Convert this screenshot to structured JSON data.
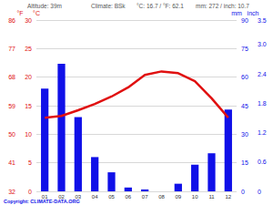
{
  "chart_data": {
    "type": "bar",
    "annotations": [
      "Altitude: 39m",
      "Climate: BSk",
      "°C: 16.7 / °F: 62.1",
      "mm: 272 / inch: 10.7",
      "Copyright: CLIMATE-DATA.ORG"
    ],
    "categories": [
      "01",
      "02",
      "03",
      "04",
      "05",
      "06",
      "07",
      "08",
      "09",
      "10",
      "11",
      "12"
    ],
    "ylabel": "°C",
    "ylim": [
      0,
      30
    ],
    "yticks": [
      0,
      5,
      10,
      15,
      20,
      25,
      30
    ],
    "y2label": "mm",
    "y2lim": [
      0,
      90
    ],
    "y2ticks": [
      0,
      15,
      30,
      45,
      60,
      75,
      90
    ],
    "y3label": "°F",
    "y3lim": [
      32,
      86
    ],
    "y3ticks": [
      32,
      41,
      50,
      59,
      68,
      77,
      86
    ],
    "y4label": "inch",
    "y4lim": [
      0,
      3.5
    ],
    "y4ticks": [
      0,
      0.6,
      1.2,
      1.8,
      2.4,
      {
        "value": 3,
        "label": "3.0"
      },
      3.5
    ],
    "grid": true,
    "series": [
      {
        "type": "bar",
        "color": "#1010e8",
        "axis": "y2",
        "values": [
          54,
          67,
          39,
          18,
          10,
          2,
          1,
          0,
          4,
          14,
          20,
          43
        ]
      },
      {
        "type": "line",
        "color": "#e01010",
        "values": [
          12.9,
          13.2,
          14.2,
          15.3,
          16.6,
          18.2,
          20.4,
          21.0,
          20.7,
          19.3,
          16.3,
          12.9
        ]
      }
    ]
  }
}
